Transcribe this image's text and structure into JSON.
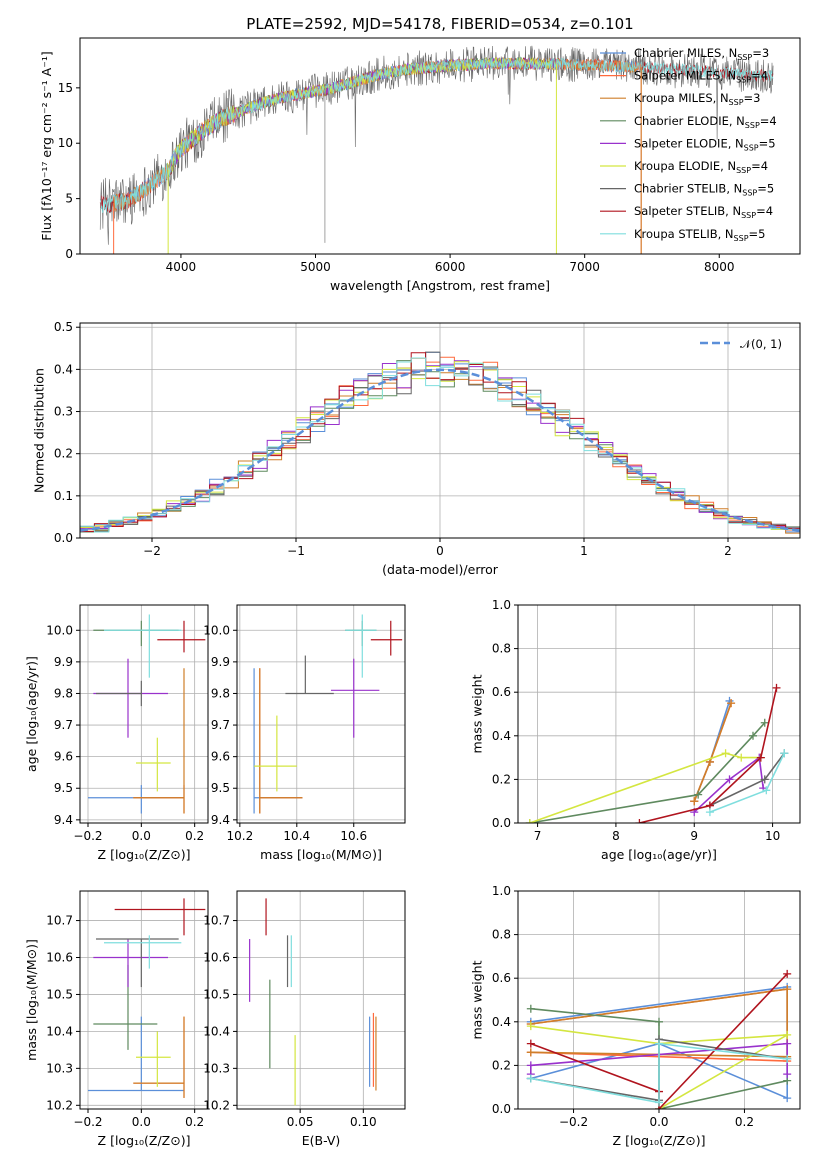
{
  "figure": {
    "title": "PLATE=2592, MJD=54178, FIBERID=0534, z=0.101",
    "colors": {
      "Chabrier MILES": "#5b8fd9",
      "Salpeter MILES": "#ff6a3d",
      "Kroupa MILES": "#cf7f2a",
      "Chabrier ELODIE": "#5f8a5f",
      "Salpeter ELODIE": "#9932cc",
      "Kroupa ELODIE": "#d4e640",
      "Chabrier STELIB": "#666666",
      "Salpeter STELIB": "#b0141e",
      "Kroupa STELIB": "#7fdede",
      "gauss": "#5b8fd9"
    }
  },
  "chart_data": [
    {
      "id": "spectrum",
      "type": "line",
      "xlabel": "wavelength [Angstrom, rest frame]",
      "ylabel": "Flux [fλ10⁻¹⁷ erg cm⁻² s⁻¹ A⁻¹]",
      "xlim": [
        3250,
        8600
      ],
      "ylim": [
        0,
        19.5
      ],
      "xticks": [
        4000,
        5000,
        6000,
        7000,
        8000
      ],
      "yticks": [
        0,
        5,
        10,
        15
      ],
      "grid": false,
      "legend_position": "top-right",
      "continuum": [
        [
          3450,
          4.5
        ],
        [
          3600,
          4.8
        ],
        [
          3750,
          6
        ],
        [
          3900,
          7.5
        ],
        [
          4000,
          9.5
        ],
        [
          4150,
          11
        ],
        [
          4300,
          12.2
        ],
        [
          4500,
          13.2
        ],
        [
          4700,
          14
        ],
        [
          4900,
          14.5
        ],
        [
          5100,
          14.9
        ],
        [
          5300,
          15.6
        ],
        [
          5500,
          16.3
        ],
        [
          5700,
          16.7
        ],
        [
          6000,
          17
        ],
        [
          6300,
          17.2
        ],
        [
          6600,
          17.2
        ],
        [
          6900,
          17.1
        ],
        [
          7200,
          17
        ],
        [
          7500,
          16.8
        ],
        [
          7800,
          16.6
        ],
        [
          8100,
          16.3
        ],
        [
          8300,
          16.1
        ]
      ],
      "series": [
        {
          "name": "Chabrier MILES, N_SSP=3",
          "label_main": "Chabrier MILES, N",
          "label_sub": "SSP",
          "label_end": "=3",
          "x_range": [
            3500,
            7420
          ]
        },
        {
          "name": "Salpeter MILES, N_SSP=4",
          "label_main": "Salpeter MILES, N",
          "label_sub": "SSP",
          "label_end": "=4",
          "x_range": [
            3500,
            7420
          ]
        },
        {
          "name": "Kroupa MILES, N_SSP=3",
          "label_main": "Kroupa MILES, N",
          "label_sub": "SSP",
          "label_end": "=3",
          "x_range": [
            3500,
            7420
          ]
        },
        {
          "name": "Chabrier ELODIE, N_SSP=4",
          "label_main": "Chabrier ELODIE, N",
          "label_sub": "SSP",
          "label_end": "=4",
          "x_range": [
            3900,
            6800
          ]
        },
        {
          "name": "Salpeter ELODIE, N_SSP=5",
          "label_main": "Salpeter ELODIE, N",
          "label_sub": "SSP",
          "label_end": "=5",
          "x_range": [
            3900,
            6800
          ]
        },
        {
          "name": "Kroupa ELODIE, N_SSP=4",
          "label_main": "Kroupa ELODIE, N",
          "label_sub": "SSP",
          "label_end": "=4",
          "x_range": [
            3900,
            6800
          ]
        },
        {
          "name": "Chabrier STELIB, N_SSP=5",
          "label_main": "Chabrier STELIB, N",
          "label_sub": "SSP",
          "label_end": "=5",
          "x_range": [
            3400,
            8400
          ]
        },
        {
          "name": "Salpeter STELIB, N_SSP=4",
          "label_main": "Salpeter STELIB, N",
          "label_sub": "SSP",
          "label_end": "=4",
          "x_range": [
            3400,
            8400
          ]
        },
        {
          "name": "Kroupa STELIB, N_SSP=5",
          "label_main": "Kroupa STELIB, N",
          "label_sub": "SSP",
          "label_end": "=5",
          "x_range": [
            3400,
            8400
          ]
        }
      ]
    },
    {
      "id": "residuals",
      "type": "line",
      "xlabel": "(data-model)/error",
      "ylabel": "Normed distribution",
      "xlim": [
        -2.5,
        2.5
      ],
      "ylim": [
        0,
        0.51
      ],
      "xticks": [
        -2,
        -1,
        0,
        1,
        2
      ],
      "yticks": [
        0.0,
        0.1,
        0.2,
        0.3,
        0.4,
        0.5
      ],
      "grid": true,
      "legend_position": "top-right",
      "legend_label": "𝒩(0, 1)",
      "gauss_sigma": 1,
      "bin_width": 0.1,
      "series_count": 9
    },
    {
      "id": "z-age",
      "type": "scatter",
      "xlabel": "Z [log₁₀(Z/Z⊙)]",
      "ylabel": "age  [log₁₀(age/yr)]",
      "xlim": [
        -0.23,
        0.25
      ],
      "ylim": [
        9.39,
        10.08
      ],
      "xticks": [
        -0.2,
        0.0,
        0.2
      ],
      "yticks": [
        9.4,
        9.5,
        9.6,
        9.7,
        9.8,
        9.9,
        10.0
      ],
      "grid": true,
      "points": [
        {
          "s": 0,
          "x": 0.0,
          "y": 9.47,
          "x1": -0.2,
          "x2": 0.16,
          "y1": 9.42,
          "y2": 9.51
        },
        {
          "s": 1,
          "x": 0.16,
          "y": 9.47,
          "x1": -0.03,
          "x2": 0.16,
          "y1": 9.42,
          "y2": 9.51
        },
        {
          "s": 2,
          "x": 0.16,
          "y": 9.47,
          "x1": -0.03,
          "x2": 0.16,
          "y1": 9.42,
          "y2": 9.88
        },
        {
          "s": 3,
          "x": 0.0,
          "y": 10.0,
          "x1": -0.18,
          "x2": 0.14,
          "y1": 9.95,
          "y2": 10.03
        },
        {
          "s": 4,
          "x": -0.05,
          "y": 9.8,
          "x1": -0.18,
          "x2": 0.1,
          "y1": 9.66,
          "y2": 9.91
        },
        {
          "s": 5,
          "x": 0.06,
          "y": 9.58,
          "x1": -0.02,
          "x2": 0.11,
          "y1": 9.49,
          "y2": 9.66
        },
        {
          "s": 6,
          "x": 0.0,
          "y": 9.8,
          "x1": -0.17,
          "x2": 0.0,
          "y1": 9.76,
          "y2": 9.84
        },
        {
          "s": 7,
          "x": 0.16,
          "y": 9.97,
          "x1": 0.06,
          "x2": 0.24,
          "y1": 9.93,
          "y2": 10.03
        },
        {
          "s": 8,
          "x": 0.03,
          "y": 10.0,
          "x1": -0.14,
          "x2": 0.15,
          "y1": 9.85,
          "y2": 10.05
        }
      ]
    },
    {
      "id": "mass-age",
      "type": "scatter",
      "xlabel": "mass [log₁₀(M/M⊙)]",
      "ylabel": "",
      "xlim": [
        10.19,
        10.78
      ],
      "ylim": [
        9.39,
        10.08
      ],
      "xticks": [
        10.2,
        10.4,
        10.6
      ],
      "yticks": [
        9.4,
        9.5,
        9.6,
        9.7,
        9.8,
        9.9,
        10.0
      ],
      "grid": true,
      "points": [
        {
          "s": 0,
          "x": 10.25,
          "y": 9.47,
          "x1": 10.25,
          "x2": 10.42,
          "y1": 9.42,
          "y2": 9.88
        },
        {
          "s": 1,
          "x": 10.27,
          "y": 9.47,
          "x1": 10.27,
          "x2": 10.42,
          "y1": 9.42,
          "y2": 9.88
        },
        {
          "s": 2,
          "x": 10.27,
          "y": 9.47,
          "x1": 10.27,
          "x2": 10.42,
          "y1": 9.42,
          "y2": 9.88
        },
        {
          "s": 3,
          "x": 10.63,
          "y": 10.0,
          "x1": 10.57,
          "x2": 10.68,
          "y1": 9.95,
          "y2": 10.03
        },
        {
          "s": 4,
          "x": 10.6,
          "y": 9.81,
          "x1": 10.52,
          "x2": 10.69,
          "y1": 9.66,
          "y2": 9.91
        },
        {
          "s": 5,
          "x": 10.33,
          "y": 9.57,
          "x1": 10.25,
          "x2": 10.4,
          "y1": 9.49,
          "y2": 9.73
        },
        {
          "s": 6,
          "x": 10.43,
          "y": 9.8,
          "x1": 10.36,
          "x2": 10.53,
          "y1": 9.8,
          "y2": 9.92
        },
        {
          "s": 7,
          "x": 10.73,
          "y": 9.97,
          "x1": 10.66,
          "x2": 10.77,
          "y1": 9.92,
          "y2": 10.03
        },
        {
          "s": 8,
          "x": 10.63,
          "y": 10.0,
          "x1": 10.57,
          "x2": 10.68,
          "y1": 9.85,
          "y2": 10.05
        }
      ]
    },
    {
      "id": "age-weight",
      "type": "line",
      "xlabel": "age  [log₁₀(age/yr)]",
      "ylabel": "mass weight",
      "xlim": [
        6.75,
        10.35
      ],
      "ylim": [
        0,
        1.0
      ],
      "xticks": [
        7,
        8,
        9,
        10
      ],
      "yticks": [
        0.0,
        0.2,
        0.4,
        0.6,
        0.8,
        1.0
      ],
      "grid": true,
      "series": [
        {
          "s": 0,
          "x": [
            9.0,
            9.2,
            9.45
          ],
          "y": [
            0.1,
            0.28,
            0.56
          ]
        },
        {
          "s": 1,
          "x": [
            9.0,
            9.2,
            9.47
          ],
          "y": [
            0.1,
            0.28,
            0.55
          ]
        },
        {
          "s": 2,
          "x": [
            9.0,
            9.2,
            9.47
          ],
          "y": [
            0.1,
            0.28,
            0.55
          ]
        },
        {
          "s": 3,
          "x": [
            6.9,
            9.05,
            9.75,
            9.9
          ],
          "y": [
            0.0,
            0.13,
            0.4,
            0.46
          ]
        },
        {
          "s": 4,
          "x": [
            9.0,
            9.45,
            9.83,
            9.88
          ],
          "y": [
            0.05,
            0.2,
            0.3,
            0.16
          ]
        },
        {
          "s": 5,
          "x": [
            6.9,
            9.4,
            9.6,
            9.85
          ],
          "y": [
            0.0,
            0.32,
            0.3,
            0.3
          ]
        },
        {
          "s": 6,
          "x": [
            9.2,
            9.9,
            10.15
          ],
          "y": [
            0.08,
            0.2,
            0.32
          ]
        },
        {
          "s": 7,
          "x": [
            8.3,
            9.2,
            9.85,
            10.05
          ],
          "y": [
            0.0,
            0.08,
            0.3,
            0.62
          ]
        },
        {
          "s": 8,
          "x": [
            9.2,
            9.92,
            10.15
          ],
          "y": [
            0.05,
            0.15,
            0.32
          ]
        }
      ]
    },
    {
      "id": "z-mass",
      "type": "scatter",
      "xlabel": "Z [log₁₀(Z/Z⊙)]",
      "ylabel": "mass [log₁₀(M/M⊙)]",
      "xlim": [
        -0.23,
        0.25
      ],
      "ylim": [
        10.19,
        10.78
      ],
      "xticks": [
        -0.2,
        0.0,
        0.2
      ],
      "yticks": [
        10.2,
        10.3,
        10.4,
        10.5,
        10.6,
        10.7
      ],
      "grid": true,
      "points": [
        {
          "s": 0,
          "x": 0.0,
          "y": 10.24,
          "x1": -0.2,
          "x2": 0.16,
          "y1": 10.24,
          "y2": 10.44
        },
        {
          "s": 1,
          "x": 0.16,
          "y": 10.26,
          "x1": -0.03,
          "x2": 0.16,
          "y1": 10.22,
          "y2": 10.44
        },
        {
          "s": 2,
          "x": 0.16,
          "y": 10.26,
          "x1": -0.03,
          "x2": 0.16,
          "y1": 10.22,
          "y2": 10.44
        },
        {
          "s": 3,
          "x": -0.05,
          "y": 10.42,
          "x1": -0.18,
          "x2": 0.06,
          "y1": 10.35,
          "y2": 10.58
        },
        {
          "s": 4,
          "x": -0.05,
          "y": 10.6,
          "x1": -0.18,
          "x2": 0.1,
          "y1": 10.52,
          "y2": 10.65
        },
        {
          "s": 5,
          "x": 0.06,
          "y": 10.33,
          "x1": -0.02,
          "x2": 0.11,
          "y1": 10.25,
          "y2": 10.4
        },
        {
          "s": 6,
          "x": 0.0,
          "y": 10.65,
          "x1": -0.17,
          "x2": 0.14,
          "y1": 10.52,
          "y2": 10.65
        },
        {
          "s": 7,
          "x": 0.16,
          "y": 10.73,
          "x1": -0.1,
          "x2": 0.24,
          "y1": 10.66,
          "y2": 10.76
        },
        {
          "s": 8,
          "x": 0.03,
          "y": 10.64,
          "x1": -0.14,
          "x2": 0.15,
          "y1": 10.57,
          "y2": 10.66
        }
      ]
    },
    {
      "id": "ebv-mass",
      "type": "scatter",
      "xlabel": "E(B-V)",
      "ylabel": "",
      "xlim": [
        0.0,
        0.133
      ],
      "ylim": [
        10.19,
        10.78
      ],
      "xticks": [
        0.05,
        0.1
      ],
      "yticks": [
        10.2,
        10.3,
        10.4,
        10.5,
        10.6,
        10.7
      ],
      "grid": true,
      "points": [
        {
          "s": 0,
          "x": 0.105,
          "y": 10.32,
          "y1": 10.25,
          "y2": 10.44
        },
        {
          "s": 1,
          "x": 0.108,
          "y": 10.33,
          "y1": 10.25,
          "y2": 10.45
        },
        {
          "s": 2,
          "x": 0.11,
          "y": 10.33,
          "y1": 10.24,
          "y2": 10.44
        },
        {
          "s": 3,
          "x": 0.026,
          "y": 10.42,
          "y1": 10.3,
          "y2": 10.54
        },
        {
          "s": 4,
          "x": 0.01,
          "y": 10.55,
          "y1": 10.48,
          "y2": 10.65
        },
        {
          "s": 5,
          "x": 0.046,
          "y": 10.29,
          "y1": 10.2,
          "y2": 10.39
        },
        {
          "s": 6,
          "x": 0.04,
          "y": 10.6,
          "y1": 10.52,
          "y2": 10.66
        },
        {
          "s": 7,
          "x": 0.023,
          "y": 10.71,
          "y1": 10.66,
          "y2": 10.76
        },
        {
          "s": 8,
          "x": 0.043,
          "y": 10.6,
          "y1": 10.52,
          "y2": 10.66
        }
      ]
    },
    {
      "id": "z-weight",
      "type": "line",
      "xlabel": "Z [log₁₀(Z/Z⊙)]",
      "ylabel": "mass weight",
      "xlim": [
        -0.33,
        0.33
      ],
      "ylim": [
        0,
        1.0
      ],
      "xticks": [
        -0.2,
        0.0,
        0.2
      ],
      "yticks": [
        0.0,
        0.2,
        0.4,
        0.6,
        0.8,
        1.0
      ],
      "grid": true,
      "series": [
        {
          "s": 0,
          "x": [
            -0.3,
            0.3,
            0.3,
            0.0,
            -0.3
          ],
          "y": [
            0.4,
            0.56,
            0.05,
            0.3,
            0.14
          ]
        },
        {
          "s": 1,
          "x": [
            -0.3,
            0.3,
            0.3,
            -0.3
          ],
          "y": [
            0.39,
            0.55,
            0.22,
            0.26
          ]
        },
        {
          "s": 2,
          "x": [
            -0.3,
            0.3,
            0.3,
            -0.3
          ],
          "y": [
            0.39,
            0.55,
            0.24,
            0.26
          ]
        },
        {
          "s": 3,
          "x": [
            -0.3,
            0.0,
            0.0,
            0.3
          ],
          "y": [
            0.46,
            0.4,
            0.0,
            0.13
          ]
        },
        {
          "s": 4,
          "x": [
            -0.3,
            -0.3,
            0.3,
            0.3
          ],
          "y": [
            0.16,
            0.2,
            0.3,
            0.16
          ]
        },
        {
          "s": 5,
          "x": [
            -0.3,
            0.0,
            0.3,
            0.0
          ],
          "y": [
            0.38,
            0.3,
            0.34,
            0.0
          ]
        },
        {
          "s": 6,
          "x": [
            -0.3,
            0.0,
            0.0,
            0.3
          ],
          "y": [
            0.14,
            0.04,
            0.32,
            0.23
          ]
        },
        {
          "s": 7,
          "x": [
            -0.3,
            0.0,
            0.0,
            0.3
          ],
          "y": [
            0.3,
            0.08,
            0.0,
            0.62
          ]
        },
        {
          "s": 8,
          "x": [
            -0.3,
            0.0,
            0.0,
            0.3
          ],
          "y": [
            0.14,
            0.03,
            0.3,
            0.23
          ]
        }
      ]
    }
  ]
}
